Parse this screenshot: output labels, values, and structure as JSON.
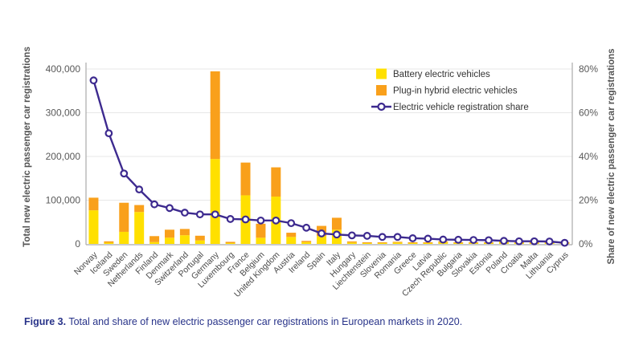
{
  "figure": {
    "caption_label": "Figure 3.",
    "caption_text": " Total and share of new electric passenger car registrations in European markets in 2020."
  },
  "colors": {
    "bev": "#FFE000",
    "phev": "#F9A01B",
    "share_line": "#3D2A8F",
    "marker_fill": "#FFFFFF",
    "grid": "#E7E7E7",
    "axis_line": "#ABABAB",
    "tick_text": "#595959",
    "caption_text": "#283389"
  },
  "chart_data": {
    "type": "bar",
    "subtype": "stacked-bars-with-line-overlay",
    "title": "",
    "left_axis": {
      "label": "Total new electric passenger car registrations",
      "range": [
        0,
        400000
      ],
      "tick_values": [
        0,
        100000,
        200000,
        300000,
        400000
      ],
      "tick_labels": [
        "0",
        "100,000",
        "200,000",
        "300,000",
        "400,000"
      ],
      "grid": true
    },
    "right_axis": {
      "label": "Share of new electric passenger car registrations",
      "range": [
        0,
        80
      ],
      "tick_values": [
        0,
        20,
        40,
        60,
        80
      ],
      "tick_labels": [
        "0%",
        "20%",
        "40%",
        "60%",
        "80%"
      ]
    },
    "legend": {
      "position": "top-right-inside",
      "items": [
        {
          "label": "Battery electric vehicles",
          "swatch": "square",
          "color_key": "bev"
        },
        {
          "label": "Plug-in hybrid electric vehicles",
          "swatch": "square",
          "color_key": "phev"
        },
        {
          "label": "Electric vehicle registration share",
          "swatch": "line-marker",
          "color_key": "share_line"
        }
      ]
    },
    "categories": [
      "Norway",
      "Iceland",
      "Sweden",
      "Netherlands",
      "Finland",
      "Denmark",
      "Switzerland",
      "Portugal",
      "Germany",
      "Luxembourg",
      "France",
      "Belgium",
      "United Kingdom",
      "Austria",
      "Ireland",
      "Spain",
      "Italy",
      "Hungary",
      "Liechtenstein",
      "Slovenia",
      "Romania",
      "Greece",
      "Latvia",
      "Czech Republic",
      "Bulgaria",
      "Slovakia",
      "Estonia",
      "Poland",
      "Croatia",
      "Malta",
      "Lithuania",
      "Cyprus"
    ],
    "series": [
      {
        "name": "Battery electric vehicles",
        "axis": "left",
        "unit": "registrations",
        "values": [
          76800,
          2700,
          27600,
          73000,
          4200,
          14200,
          19800,
          7900,
          194200,
          1800,
          111100,
          14100,
          108200,
          15900,
          4000,
          17900,
          32500,
          3000,
          200,
          1900,
          3000,
          600,
          300,
          3200,
          500,
          900,
          300,
          4700,
          500,
          300,
          300,
          100
        ]
      },
      {
        "name": "Plug-in hybrid electric vehicles",
        "axis": "left",
        "unit": "registrations",
        "values": [
          28900,
          3200,
          66500,
          15900,
          13600,
          18300,
          14400,
          10800,
          200500,
          2900,
          74900,
          32000,
          66900,
          9700,
          2900,
          23300,
          27300,
          2700,
          200,
          800,
          1200,
          1500,
          200,
          2500,
          200,
          700,
          100,
          4700,
          100,
          100,
          200,
          100
        ]
      },
      {
        "name": "Electric vehicle registration share",
        "axis": "right",
        "unit": "%",
        "values": [
          74.8,
          50.6,
          32.2,
          24.9,
          18.1,
          16.4,
          14.3,
          13.5,
          13.5,
          11.4,
          11.2,
          10.7,
          10.7,
          9.5,
          7.4,
          4.8,
          4.3,
          3.9,
          3.7,
          3.2,
          3.2,
          2.6,
          2.4,
          2.0,
          1.9,
          1.8,
          1.7,
          1.4,
          1.2,
          1.2,
          1.1,
          0.5
        ]
      }
    ]
  }
}
